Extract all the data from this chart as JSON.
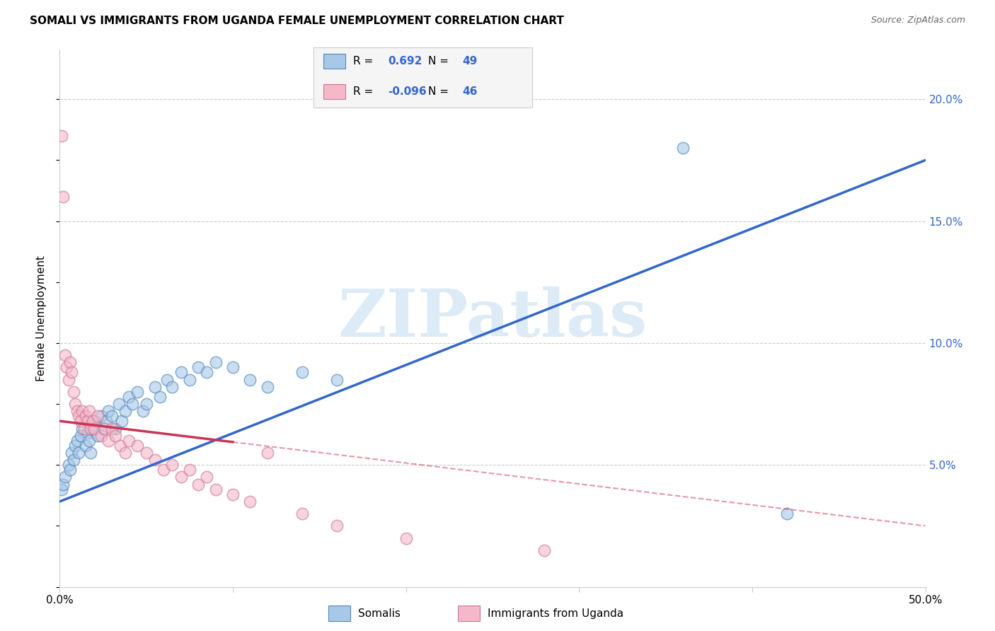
{
  "title": "SOMALI VS IMMIGRANTS FROM UGANDA FEMALE UNEMPLOYMENT CORRELATION CHART",
  "source": "Source: ZipAtlas.com",
  "ylabel": "Female Unemployment",
  "ylabel_right_ticks": [
    "20.0%",
    "15.0%",
    "10.0%",
    "5.0%"
  ],
  "ylabel_right_vals": [
    0.2,
    0.15,
    0.1,
    0.05
  ],
  "legend_somali_R": "0.692",
  "legend_somali_N": "49",
  "legend_uganda_R": "-0.096",
  "legend_uganda_N": "46",
  "somali_color": "#a8c8e8",
  "somali_edge": "#5588bb",
  "uganda_color": "#f4b8c8",
  "uganda_edge": "#cc7799",
  "trend_somali_color": "#3366cc",
  "trend_uganda_color": "#cc3355",
  "watermark_text": "ZIPatlas",
  "watermark_color": "#d8e8f5",
  "somali_x": [
    0.001,
    0.002,
    0.003,
    0.005,
    0.006,
    0.007,
    0.008,
    0.009,
    0.01,
    0.011,
    0.012,
    0.013,
    0.015,
    0.016,
    0.017,
    0.018,
    0.019,
    0.02,
    0.022,
    0.024,
    0.025,
    0.027,
    0.028,
    0.03,
    0.032,
    0.034,
    0.036,
    0.038,
    0.04,
    0.042,
    0.045,
    0.048,
    0.05,
    0.055,
    0.058,
    0.062,
    0.065,
    0.07,
    0.075,
    0.08,
    0.085,
    0.09,
    0.1,
    0.11,
    0.12,
    0.14,
    0.16,
    0.36,
    0.42
  ],
  "somali_y": [
    0.04,
    0.042,
    0.045,
    0.05,
    0.048,
    0.055,
    0.052,
    0.058,
    0.06,
    0.055,
    0.062,
    0.065,
    0.058,
    0.063,
    0.06,
    0.055,
    0.065,
    0.068,
    0.062,
    0.07,
    0.065,
    0.068,
    0.072,
    0.07,
    0.065,
    0.075,
    0.068,
    0.072,
    0.078,
    0.075,
    0.08,
    0.072,
    0.075,
    0.082,
    0.078,
    0.085,
    0.082,
    0.088,
    0.085,
    0.09,
    0.088,
    0.092,
    0.09,
    0.085,
    0.082,
    0.088,
    0.085,
    0.18,
    0.03
  ],
  "uganda_x": [
    0.001,
    0.002,
    0.003,
    0.004,
    0.005,
    0.006,
    0.007,
    0.008,
    0.009,
    0.01,
    0.011,
    0.012,
    0.013,
    0.014,
    0.015,
    0.016,
    0.017,
    0.018,
    0.019,
    0.02,
    0.022,
    0.024,
    0.026,
    0.028,
    0.03,
    0.032,
    0.035,
    0.038,
    0.04,
    0.045,
    0.05,
    0.055,
    0.06,
    0.065,
    0.07,
    0.075,
    0.08,
    0.085,
    0.09,
    0.1,
    0.11,
    0.12,
    0.14,
    0.16,
    0.2,
    0.28
  ],
  "uganda_y": [
    0.185,
    0.16,
    0.095,
    0.09,
    0.085,
    0.092,
    0.088,
    0.08,
    0.075,
    0.072,
    0.07,
    0.068,
    0.072,
    0.065,
    0.07,
    0.068,
    0.072,
    0.065,
    0.068,
    0.065,
    0.07,
    0.062,
    0.065,
    0.06,
    0.065,
    0.062,
    0.058,
    0.055,
    0.06,
    0.058,
    0.055,
    0.052,
    0.048,
    0.05,
    0.045,
    0.048,
    0.042,
    0.045,
    0.04,
    0.038,
    0.035,
    0.055,
    0.03,
    0.025,
    0.02,
    0.015
  ],
  "xlim": [
    0.0,
    0.5
  ],
  "ylim": [
    0.0,
    0.22
  ],
  "trend_somali_x0": 0.0,
  "trend_somali_y0": 0.035,
  "trend_somali_x1": 0.5,
  "trend_somali_y1": 0.175,
  "trend_uganda_x0": 0.0,
  "trend_uganda_y0": 0.068,
  "trend_uganda_x1": 0.5,
  "trend_uganda_y1": 0.025,
  "trend_uganda_solid_end": 0.1,
  "background_color": "#ffffff",
  "grid_color": "#cccccc",
  "legend_box_color": "#f5f5f5",
  "legend_box_edge": "#cccccc",
  "legend_text_color": "#3366cc"
}
